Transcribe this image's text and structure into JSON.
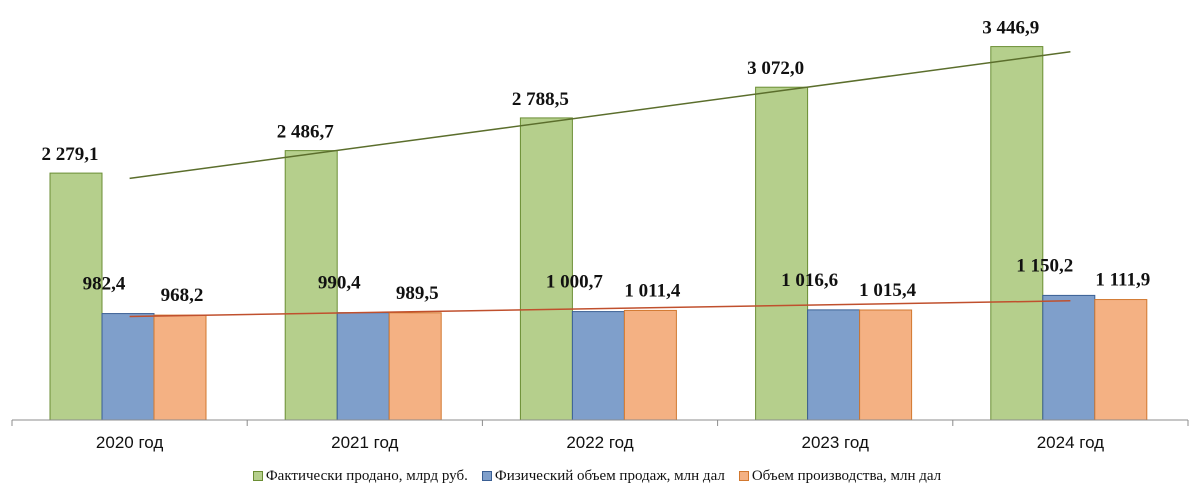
{
  "chart_data": {
    "type": "bar",
    "categories": [
      "2020 год",
      "2021 год",
      "2022 год",
      "2023 год",
      "2024 год"
    ],
    "series": [
      {
        "name": "Фактически продано, млрд руб.",
        "values": [
          2279.1,
          2486.7,
          2788.5,
          3072.0,
          3446.9
        ],
        "labels": [
          "2 279,1",
          "2 486,7",
          "2 788,5",
          "3 072,0",
          "3 446,9"
        ],
        "color": "#b5cf8c",
        "edge": "#6b8e34"
      },
      {
        "name": "Физический объем продаж, млн дал",
        "values": [
          982.4,
          990.4,
          1000.7,
          1016.6,
          1150.2
        ],
        "labels": [
          "982,4",
          "990,4",
          "1 000,7",
          "1 016,6",
          "1 150,2"
        ],
        "color": "#7f9fcb",
        "edge": "#3a5f94"
      },
      {
        "name": "Объем производства, млн дал",
        "values": [
          968.2,
          989.5,
          1011.4,
          1015.4,
          1111.9
        ],
        "labels": [
          "968,2",
          "989,5",
          "1 011,4",
          "1 015,4",
          "1 111,9"
        ],
        "color": "#f4b183",
        "edge": "#d2782f"
      }
    ],
    "trendlines": [
      {
        "series": 0,
        "color": "#5b6e2c"
      },
      {
        "series": 1,
        "color": "#c0502d"
      }
    ],
    "ylim": [
      0,
      3600
    ],
    "grid": false,
    "legend_position": "bottom"
  }
}
